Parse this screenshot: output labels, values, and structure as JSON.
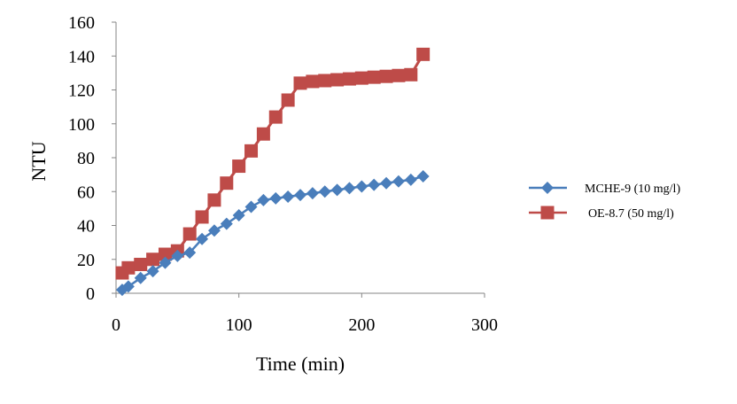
{
  "chart_data": {
    "type": "line",
    "title": "",
    "xlabel": "Time (min)",
    "ylabel": "NTU",
    "xlim": [
      0,
      300
    ],
    "ylim": [
      0,
      160
    ],
    "x_ticks": [
      0,
      100,
      200,
      300
    ],
    "y_ticks": [
      0,
      20,
      40,
      60,
      80,
      100,
      120,
      140,
      160
    ],
    "grid": false,
    "legend_position": "right",
    "series": [
      {
        "name": "MCHE-9 (10 mg/l)",
        "color": "#4a7ebb",
        "marker": "diamond",
        "x": [
          5,
          10,
          20,
          30,
          40,
          50,
          60,
          70,
          80,
          90,
          100,
          110,
          120,
          130,
          140,
          150,
          160,
          170,
          180,
          190,
          200,
          210,
          220,
          230,
          240,
          250
        ],
        "y": [
          2,
          4,
          9,
          13,
          18,
          22,
          24,
          32,
          37,
          41,
          46,
          51,
          55,
          56,
          57,
          58,
          59,
          60,
          61,
          62,
          63,
          64,
          65,
          66,
          67,
          69
        ]
      },
      {
        "name": "OE-8.7 (50 mg/l)",
        "color": "#be4b48",
        "marker": "square",
        "x": [
          5,
          10,
          20,
          30,
          40,
          50,
          60,
          70,
          80,
          90,
          100,
          110,
          120,
          130,
          140,
          150,
          160,
          170,
          180,
          190,
          200,
          210,
          220,
          230,
          240,
          250
        ],
        "y": [
          12,
          15,
          17,
          20,
          23,
          25,
          35,
          45,
          55,
          65,
          75,
          84,
          94,
          104,
          114,
          124,
          125,
          125.5,
          126,
          126.5,
          127,
          127.5,
          128,
          128.5,
          129,
          141
        ]
      }
    ]
  }
}
